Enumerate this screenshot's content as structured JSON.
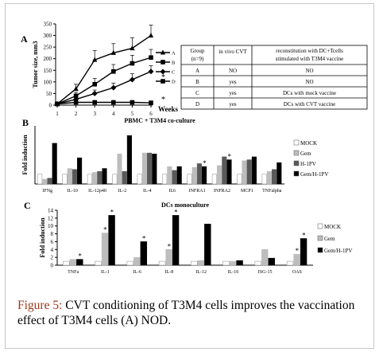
{
  "caption": {
    "figure_label": "Figure 5:",
    "text": "CVT conditioning of T3M4 cells improves the vaccination effect of T3M4 cells (A) NOD."
  },
  "panels": {
    "a": {
      "letter": "A",
      "table": {
        "headers": [
          "Group (n=9)",
          "in vivo CVT",
          "reconstitution with DC+Tcells stimulated with T3M4 vaccine"
        ],
        "rows": [
          [
            "A",
            "NO",
            "NO"
          ],
          [
            "B",
            "yes",
            "NO"
          ],
          [
            "C",
            "yes",
            "DCs with mock vaccine"
          ],
          [
            "D",
            "yes",
            "DCs with CVT vaccine"
          ]
        ]
      }
    },
    "b": {
      "letter": "B"
    },
    "c": {
      "letter": "C"
    }
  },
  "chart_data": [
    {
      "id": "A",
      "type": "line",
      "xlabel": "Weeks",
      "ylabel": "Tumor size, mm3",
      "x": [
        1,
        2,
        3,
        4,
        5,
        6
      ],
      "ylim": [
        0,
        350
      ],
      "yticks": [
        0,
        50,
        100,
        150,
        200,
        250,
        300,
        350
      ],
      "series": [
        {
          "name": "A",
          "marker": "triangle",
          "values": [
            5,
            70,
            195,
            225,
            245,
            300
          ],
          "errors": [
            5,
            20,
            40,
            40,
            45,
            45
          ]
        },
        {
          "name": "B",
          "marker": "square",
          "values": [
            5,
            40,
            90,
            145,
            180,
            205
          ],
          "errors": [
            5,
            15,
            25,
            30,
            35,
            35
          ]
        },
        {
          "name": "C",
          "marker": "diamond",
          "values": [
            5,
            25,
            50,
            75,
            110,
            145
          ],
          "errors": [
            5,
            10,
            15,
            20,
            25,
            25
          ]
        },
        {
          "name": "D",
          "marker": "square",
          "values": [
            5,
            12,
            12,
            12,
            12,
            10
          ],
          "errors": [
            3,
            3,
            3,
            3,
            3,
            3
          ]
        }
      ],
      "annotations": [
        {
          "text": "*",
          "series": "C",
          "x": 6
        },
        {
          "text": "*",
          "series": "D",
          "x": 6
        }
      ],
      "legend_position": "right"
    },
    {
      "id": "B",
      "type": "bar",
      "title": "PBMC + T3M4 co-culture",
      "ylabel": "Fold induction",
      "ylim": [
        0,
        6
      ],
      "categories": [
        "IFNg",
        "IL-10",
        "IL-12p40",
        "IL-2",
        "IL-4",
        "IL6",
        "INFRA1",
        "INFRA2",
        "MCP1",
        "TNFalpha"
      ],
      "series": [
        {
          "name": "MOCK",
          "color": "#ffffff",
          "values": [
            1.0,
            1.0,
            1.0,
            1.0,
            1.0,
            1.0,
            1.0,
            1.0,
            1.0,
            1.0
          ]
        },
        {
          "name": "Gem",
          "color": "#bdbdbd",
          "values": [
            0.5,
            1.6,
            1.2,
            3.1,
            3.2,
            1.8,
            1.7,
            1.9,
            2.4,
            1.3
          ]
        },
        {
          "name": "H-1PV",
          "color": "#595959",
          "values": [
            0.6,
            1.5,
            1.3,
            1.3,
            3.2,
            1.4,
            2.1,
            2.8,
            2.5,
            1.5
          ]
        },
        {
          "name": "Gem/H-1PV",
          "color": "#000000",
          "values": [
            4.2,
            2.7,
            1.6,
            5.0,
            3.1,
            1.8,
            1.8,
            2.5,
            2.8,
            2.2
          ]
        }
      ],
      "annotations": [
        {
          "text": "*",
          "category": "INFRA1"
        },
        {
          "text": "*",
          "category": "INFRA2"
        }
      ],
      "legend_position": "right"
    },
    {
      "id": "C",
      "type": "bar",
      "title": "DCs monoculture",
      "ylabel": "Fold induction",
      "ylim": [
        0,
        14
      ],
      "yticks": [
        0,
        2,
        4,
        6,
        8,
        10,
        12,
        14
      ],
      "categories": [
        "TNFa",
        "IL-1",
        "IL-6",
        "IL-8",
        "IL-12",
        "IL-10",
        "ISG-15",
        "OAS"
      ],
      "series": [
        {
          "name": "MOCK",
          "color": "#ffffff",
          "values": [
            1.0,
            1.0,
            1.0,
            1.0,
            1.0,
            1.0,
            1.0,
            1.0
          ]
        },
        {
          "name": "Gem",
          "color": "#bdbdbd",
          "values": [
            1.5,
            8.2,
            2.0,
            4.0,
            1.2,
            1.0,
            4.0,
            2.8
          ]
        },
        {
          "name": "Gem/H-1PV",
          "color": "#000000",
          "values": [
            1.5,
            12.7,
            6.0,
            12.7,
            10.5,
            1.2,
            1.8,
            6.8
          ]
        }
      ],
      "annotations": [
        {
          "text": "*",
          "category": "TNFa"
        },
        {
          "text": "*",
          "category": "IL-1"
        },
        {
          "text": "*",
          "category": "IL-1",
          "series": "Gem"
        },
        {
          "text": "*",
          "category": "IL-6"
        },
        {
          "text": "*",
          "category": "IL-8"
        },
        {
          "text": "*",
          "category": "IL-8",
          "series": "Gem"
        },
        {
          "text": "*",
          "category": "OAS"
        },
        {
          "text": "*",
          "category": "OAS",
          "series": "Gem"
        }
      ],
      "legend_position": "right"
    }
  ]
}
